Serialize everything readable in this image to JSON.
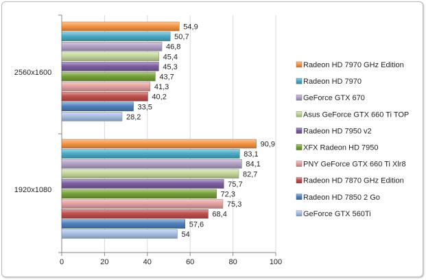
{
  "chart_data": {
    "type": "bar",
    "orientation": "horizontal",
    "title": "",
    "xlabel": "",
    "ylabel": "",
    "xlim": [
      0,
      100
    ],
    "x_ticks": [
      "0",
      "20",
      "40",
      "60",
      "80",
      "100"
    ],
    "grid": "vertical",
    "legend_position": "right",
    "categories": [
      "2560x1600",
      "1920x1080"
    ],
    "series": [
      {
        "name": "Radeon HD 7970 GHz Edition",
        "color": "#f79646",
        "values": [
          54.9,
          90.9
        ],
        "labels": [
          "54,9",
          "90,9"
        ]
      },
      {
        "name": "Radeon HD 7970",
        "color": "#4bacc6",
        "values": [
          50.7,
          83.1
        ],
        "labels": [
          "50,7",
          "83,1"
        ]
      },
      {
        "name": "GeForce GTX 670",
        "color": "#b3a2c7",
        "values": [
          46.8,
          84.1
        ],
        "labels": [
          "46,8",
          "84,1"
        ]
      },
      {
        "name": "Asus GeForce GTX 660 Ti TOP",
        "color": "#c3d69b",
        "values": [
          45.4,
          82.7
        ],
        "labels": [
          "45,4",
          "82,7"
        ]
      },
      {
        "name": "Radeon HD  7950 v2",
        "color": "#7d5fa0",
        "values": [
          45.3,
          75.7
        ],
        "labels": [
          "45,3",
          "75,7"
        ]
      },
      {
        "name": "XFX Radeon HD 7950",
        "color": "#77a339",
        "values": [
          43.7,
          72.3
        ],
        "labels": [
          "43,7",
          "72,3"
        ]
      },
      {
        "name": "PNY GeForce GTX 660 Ti Xlr8",
        "color": "#e6a0a0",
        "values": [
          41.3,
          75.3
        ],
        "labels": [
          "41,3",
          "75,3"
        ]
      },
      {
        "name": "Radeon HD 7870 GHz Edition",
        "color": "#c0504d",
        "values": [
          40.2,
          68.4
        ],
        "labels": [
          "40,2",
          "68,4"
        ]
      },
      {
        "name": "Radeon HD 7850 2 Go",
        "color": "#4f81bd",
        "values": [
          33.5,
          57.6
        ],
        "labels": [
          "33,5",
          "57,6"
        ]
      },
      {
        "name": "GeForce GTX 560Ti",
        "color": "#a7c0e4",
        "values": [
          28.2,
          54
        ],
        "labels": [
          "28,2",
          "54"
        ]
      }
    ]
  }
}
